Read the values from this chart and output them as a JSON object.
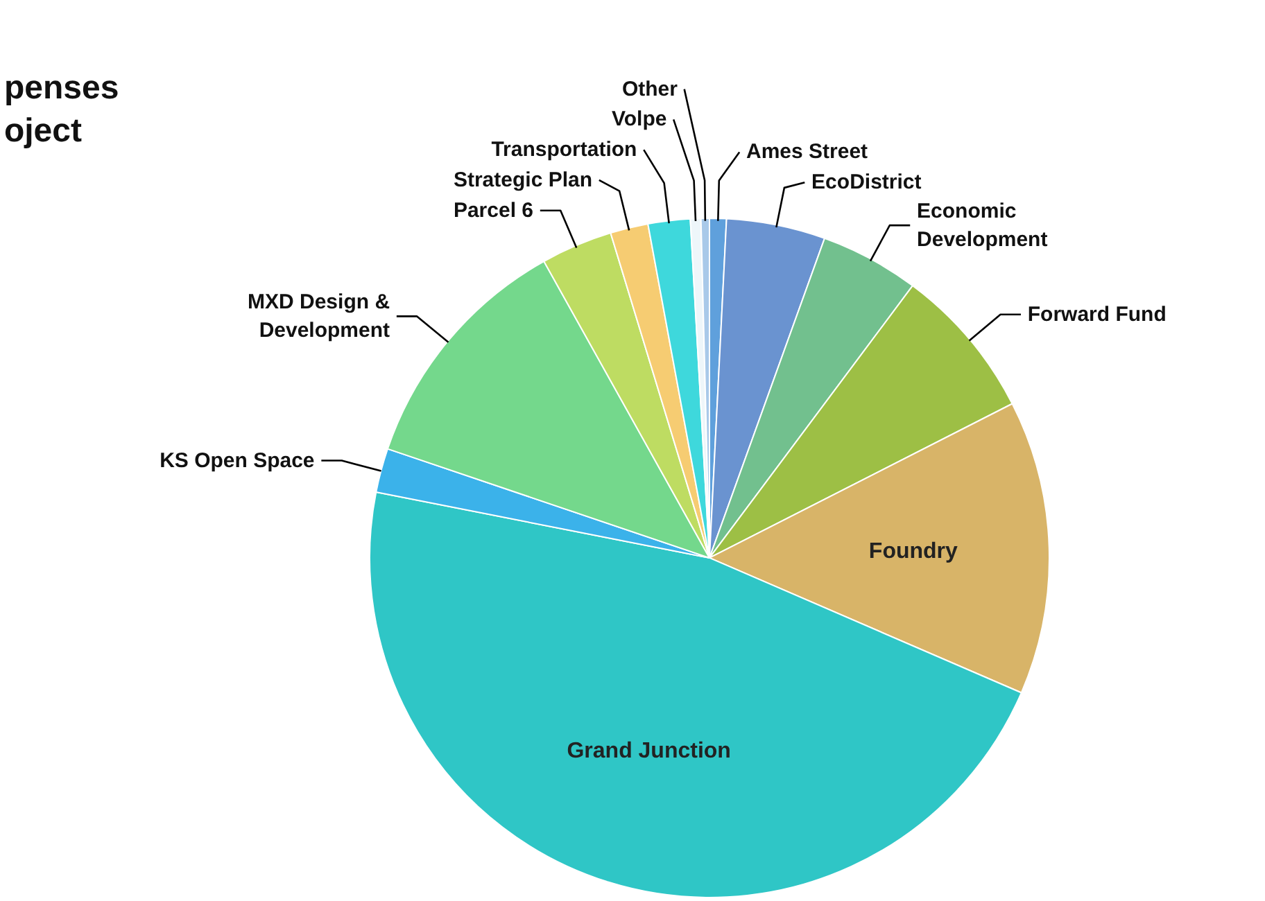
{
  "chart_data": {
    "type": "pie",
    "title": "penses\noject",
    "categories": [
      "Ames Street",
      "EcoDistrict",
      "Economic\nDevelopment",
      "Forward Fund",
      "Foundry",
      "Grand Junction",
      "KS Open Space",
      "MXD Design &\nDevelopment",
      "Parcel 6",
      "Strategic Plan",
      "Transportation",
      "Volpe",
      "Other"
    ],
    "values": [
      0.8,
      4.7,
      4.7,
      7.3,
      14.0,
      46.6,
      2.1,
      11.7,
      3.4,
      1.8,
      2.0,
      0.5,
      0.4
    ],
    "colors": [
      "#5fa0dc",
      "#6a93d0",
      "#72c08e",
      "#9dbf45",
      "#d8b468",
      "#2fc6c6",
      "#3bb2ea",
      "#74d88c",
      "#bedc62",
      "#f6cc72",
      "#3ed8dc",
      "#eef6fa",
      "#a9c9e9"
    ]
  }
}
